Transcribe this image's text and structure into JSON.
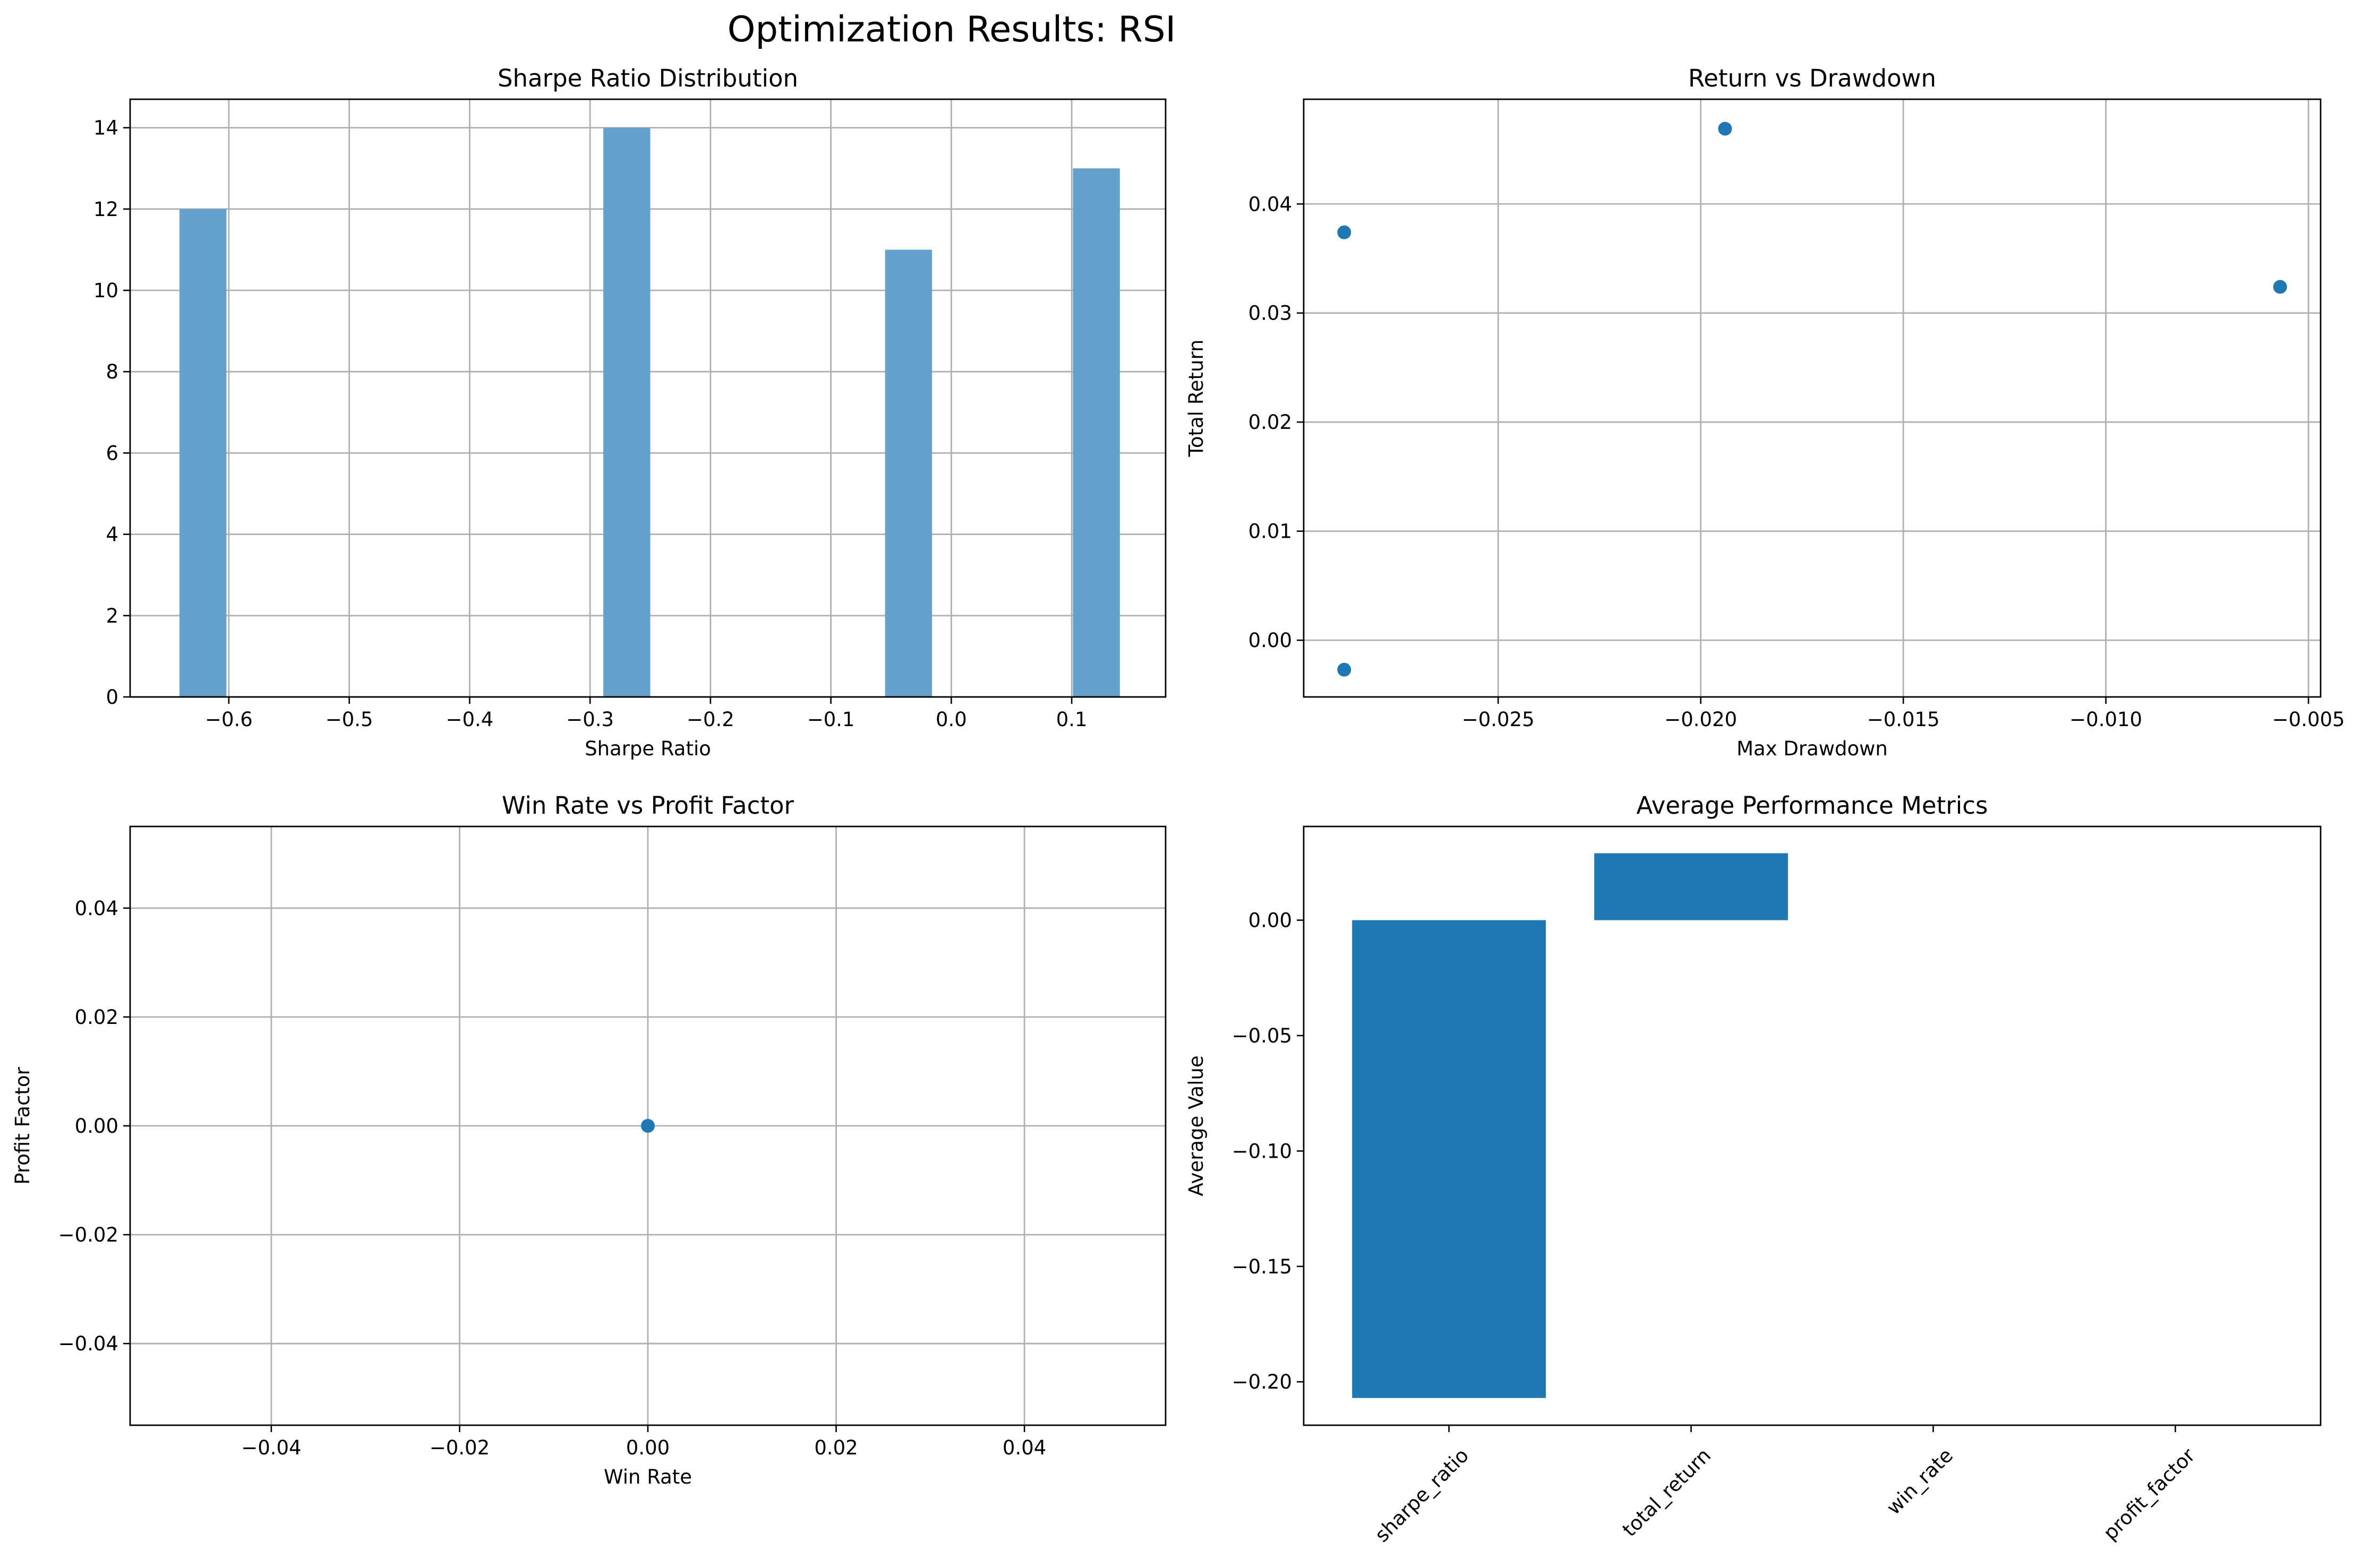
{
  "suptitle": "Optimization Results: RSI",
  "colors": {
    "hist": "#65a1cd",
    "point": "#1f77b4",
    "bar": "#1f77b4",
    "grid": "#b0b0b0"
  },
  "chart_data": [
    {
      "id": "sharpe_hist",
      "type": "bar",
      "title": "Sharpe Ratio Distribution",
      "xlabel": "Sharpe Ratio",
      "ylabel": "",
      "xlim": [
        -0.682,
        0.178
      ],
      "ylim": [
        0,
        14.7
      ],
      "xticks": [
        -0.6,
        -0.5,
        -0.4,
        -0.3,
        -0.2,
        -0.1,
        0.0,
        0.1
      ],
      "xticklabels": [
        "−0.6",
        "−0.5",
        "−0.4",
        "−0.3",
        "−0.2",
        "−0.1",
        "0.0",
        "0.1"
      ],
      "yticks": [
        0,
        2,
        4,
        6,
        8,
        10,
        12,
        14
      ],
      "yticklabels": [
        "0",
        "2",
        "4",
        "6",
        "8",
        "10",
        "12",
        "14"
      ],
      "grid": true,
      "bins": [
        {
          "x0": -0.641,
          "x1": -0.602,
          "count": 12
        },
        {
          "x0": -0.289,
          "x1": -0.25,
          "count": 14
        },
        {
          "x0": -0.055,
          "x1": -0.016,
          "count": 11
        },
        {
          "x0": 0.101,
          "x1": 0.14,
          "count": 13
        }
      ]
    },
    {
      "id": "return_vs_drawdown",
      "type": "scatter",
      "title": "Return vs Drawdown",
      "xlabel": "Max Drawdown",
      "ylabel": "Total Return",
      "xlim": [
        -0.0298,
        -0.0047
      ],
      "ylim": [
        -0.0052,
        0.0496
      ],
      "xticks": [
        -0.025,
        -0.02,
        -0.015,
        -0.01,
        -0.005
      ],
      "xticklabels": [
        "−0.025",
        "−0.020",
        "−0.015",
        "−0.010",
        "−0.005"
      ],
      "yticks": [
        0.0,
        0.01,
        0.02,
        0.03,
        0.04
      ],
      "yticklabels": [
        "0.00",
        "0.01",
        "0.02",
        "0.03",
        "0.04"
      ],
      "grid": true,
      "points": [
        {
          "x": -0.0288,
          "y": 0.0374
        },
        {
          "x": -0.0288,
          "y": -0.0027
        },
        {
          "x": -0.0194,
          "y": 0.0469
        },
        {
          "x": -0.0057,
          "y": 0.0324
        }
      ]
    },
    {
      "id": "winrate_vs_profitfactor",
      "type": "scatter",
      "title": "Win Rate vs Profit Factor",
      "xlabel": "Win Rate",
      "ylabel": "Profit Factor",
      "xlim": [
        -0.055,
        0.055
      ],
      "ylim": [
        -0.055,
        0.055
      ],
      "xticks": [
        -0.04,
        -0.02,
        0.0,
        0.02,
        0.04
      ],
      "xticklabels": [
        "−0.04",
        "−0.02",
        "0.00",
        "0.02",
        "0.04"
      ],
      "yticks": [
        -0.04,
        -0.02,
        0.0,
        0.02,
        0.04
      ],
      "yticklabels": [
        "−0.04",
        "−0.02",
        "0.00",
        "0.02",
        "0.04"
      ],
      "grid": true,
      "points": [
        {
          "x": 0.0,
          "y": 0.0
        }
      ]
    },
    {
      "id": "avg_metrics",
      "type": "bar",
      "title": "Average Performance Metrics",
      "xlabel": "",
      "ylabel": "Average Value",
      "categories": [
        "sharpe_ratio",
        "total_return",
        "win_rate",
        "profit_factor"
      ],
      "values": [
        -0.207,
        0.029,
        0.0,
        0.0
      ],
      "ylim": [
        -0.2188,
        0.0406
      ],
      "yticks": [
        -0.2,
        -0.15,
        -0.1,
        -0.05,
        0.0
      ],
      "yticklabels": [
        "−0.20",
        "−0.15",
        "−0.10",
        "−0.05",
        "0.00"
      ],
      "grid": false
    }
  ]
}
